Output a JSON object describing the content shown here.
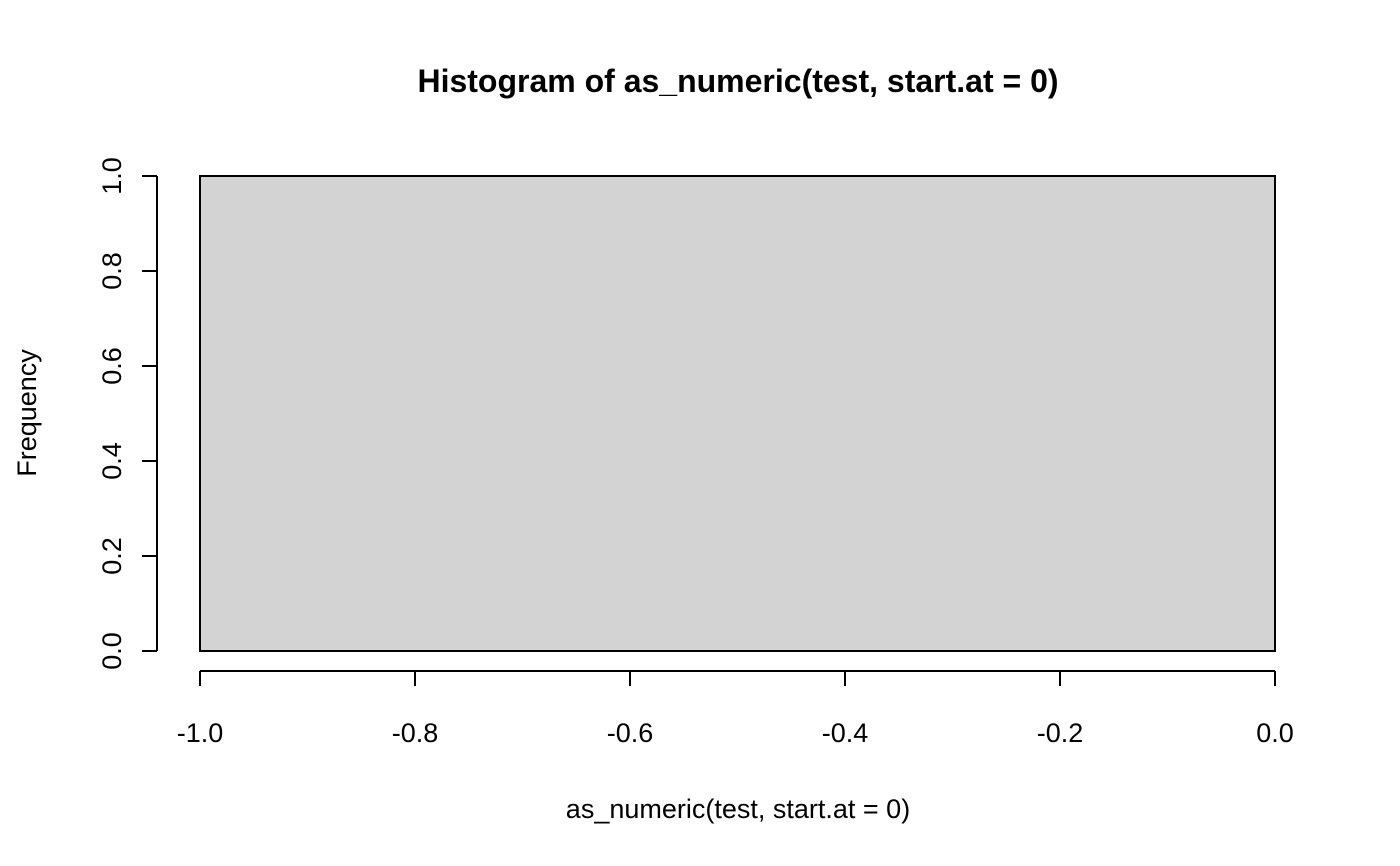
{
  "chart_data": {
    "type": "bar",
    "title": "Histogram of as_numeric(test, start.at = 0)",
    "xlabel": "as_numeric(test, start.at = 0)",
    "ylabel": "Frequency",
    "bins": [
      {
        "start": -1.0,
        "end": 0.0,
        "count": 1
      }
    ],
    "xlim": [
      -1.0,
      0.0
    ],
    "ylim": [
      0.0,
      1.0
    ],
    "x_ticks": [
      -1.0,
      -0.8,
      -0.6,
      -0.4,
      -0.2,
      0.0
    ],
    "x_tick_labels": [
      "-1.0",
      "-0.8",
      "-0.6",
      "-0.4",
      "-0.2",
      "0.0"
    ],
    "y_ticks": [
      0.0,
      0.2,
      0.4,
      0.6,
      0.8,
      1.0
    ],
    "y_tick_labels": [
      "0.0",
      "0.2",
      "0.4",
      "0.6",
      "0.8",
      "1.0"
    ],
    "grid": false,
    "legend": "none",
    "colors": {
      "bar_fill": "#d3d3d3",
      "bar_border": "#000000",
      "axis": "#000000",
      "text": "#000000"
    }
  }
}
